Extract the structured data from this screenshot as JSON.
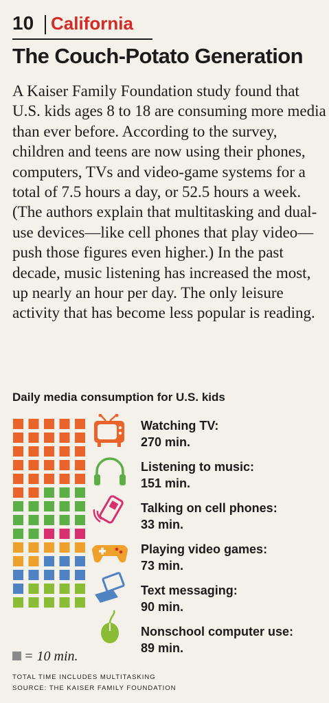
{
  "header": {
    "number": "10",
    "category": "California"
  },
  "title": "The Couch-Potato Generation",
  "body": "A Kaiser Family Foundation study found that U.S. kids ages 8 to 18 are consuming more media than ever before. According to the survey, children and teens are now using their phones, computers, TVs and video-game systems for a total of 7.5 hours a day, or 52.5 hours a week. (The authors explain that multitasking and dual-use devices—like cell phones that play video—push those figures even higher.) In the past decade, music listening has increased the most, up nearly an hour per day. The only leisure activity that has become less popular is reading.",
  "chart_data": {
    "type": "bar",
    "title": "Daily media consumption for U.S. kids",
    "unit_label": "= 10 min.",
    "square_value": 10,
    "categories": [
      "Watching TV:",
      "Listening to music:",
      "Talking on cell phones:",
      "Playing video games:",
      "Text messaging:",
      "Nonschool computer use:"
    ],
    "values": [
      270,
      151,
      33,
      73,
      90,
      89
    ],
    "value_labels": [
      "270 min.",
      "151 min.",
      "33 min.",
      "73 min.",
      "90 min.",
      "89 min."
    ],
    "colors": [
      "#e8642a",
      "#5cae46",
      "#d8306e",
      "#eea12c",
      "#4f82c2",
      "#8bbc36"
    ],
    "icons": [
      "tv-icon",
      "headphones-icon",
      "cell-phone-icon",
      "game-controller-icon",
      "laptop-icon",
      "computer-mouse-icon"
    ],
    "notes": [
      "TOTAL TIME INCLUDES MULTITASKING",
      "SOURCE: THE KAISER FAMILY FOUNDATION"
    ]
  }
}
